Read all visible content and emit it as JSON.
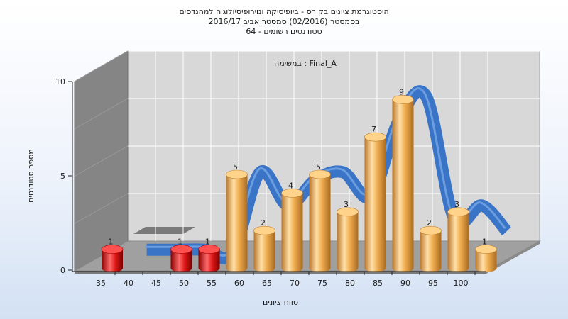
{
  "chart_data": {
    "type": "bar",
    "title_lines": [
      "היסטוגרמת ציונים בקורס - ביופיסיקה ונוירופיסיולוגיה למהנדסים",
      "בסמסטר  (02/2016)  סמסטר אביב 2016/17",
      "סטודנטים רשומים - 64"
    ],
    "annotation": "במשימה : Final_A",
    "xlabel": "טווח ציונים",
    "ylabel": "מספר סטודנטים",
    "x_ticks": [
      35,
      40,
      45,
      50,
      55,
      60,
      65,
      70,
      75,
      80,
      85,
      90,
      95,
      100
    ],
    "y_ticks": [
      0,
      5,
      10
    ],
    "ylim": [
      0,
      10
    ],
    "bars": [
      {
        "x": 35,
        "value": 1,
        "status": "fail"
      },
      {
        "x": 47.5,
        "value": 1,
        "status": "fail"
      },
      {
        "x": 52.5,
        "value": 1,
        "status": "fail"
      },
      {
        "x": 57.5,
        "value": 5,
        "status": "pass"
      },
      {
        "x": 62.5,
        "value": 2,
        "status": "pass"
      },
      {
        "x": 67.5,
        "value": 4,
        "status": "pass"
      },
      {
        "x": 72.5,
        "value": 5,
        "status": "pass"
      },
      {
        "x": 77.5,
        "value": 3,
        "status": "pass"
      },
      {
        "x": 82.5,
        "value": 7,
        "status": "pass"
      },
      {
        "x": 87.5,
        "value": 9,
        "status": "pass"
      },
      {
        "x": 92.5,
        "value": 2,
        "status": "pass"
      },
      {
        "x": 97.5,
        "value": 3,
        "status": "pass"
      },
      {
        "x": 102.5,
        "value": 1,
        "status": "pass"
      }
    ],
    "distribution_line": [
      {
        "x": 42,
        "value": 0.8
      },
      {
        "x": 47.5,
        "value": 0.8
      },
      {
        "x": 52.5,
        "value": 0.8
      },
      {
        "x": 57.5,
        "value": 0.6
      },
      {
        "x": 62.5,
        "value": 5.0
      },
      {
        "x": 67.5,
        "value": 3.2
      },
      {
        "x": 72.5,
        "value": 4.6
      },
      {
        "x": 77.5,
        "value": 5.0
      },
      {
        "x": 82.5,
        "value": 3.7
      },
      {
        "x": 87.5,
        "value": 7.8
      },
      {
        "x": 92.5,
        "value": 9.1
      },
      {
        "x": 97.5,
        "value": 2.5
      },
      {
        "x": 102.5,
        "value": 3.2
      },
      {
        "x": 107,
        "value": 1.8
      }
    ],
    "colors": {
      "fail": "#e01818",
      "pass": "#f0ae50",
      "line": "#3a74c6",
      "back_wall": "#d8d8d8",
      "left_wall": "#858585",
      "floor": "#a0a0a0"
    },
    "grid": true
  }
}
